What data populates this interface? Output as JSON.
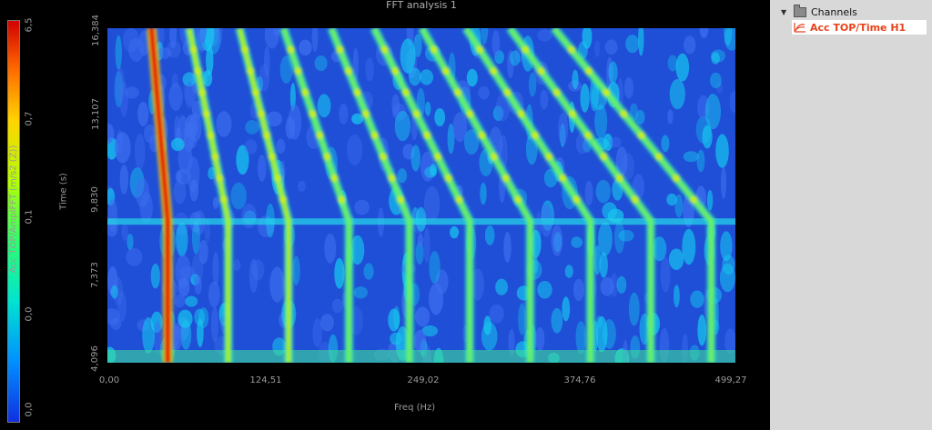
{
  "chart": {
    "title": "FFT analysis 1",
    "x_title": "Freq (Hz)",
    "y_title": "Time (s)",
    "colorbar_title": "Acc TOP/AmplFFT (m/s2 (Z))",
    "x_ticks": [
      "0,00",
      "124,51",
      "249,02",
      "374,76",
      "499,27"
    ],
    "y_ticks": [
      "16,384",
      "13,107",
      "9,830",
      "7,373",
      "4,096"
    ],
    "colorbar_ticks": [
      "6,5",
      "0,7",
      "0,1",
      "0,0",
      "0,0"
    ]
  },
  "chart_data": {
    "type": "heatmap",
    "title": "FFT analysis 1",
    "xlabel": "Freq (Hz)",
    "ylabel": "Time (s)",
    "xlim": [
      0,
      499.27
    ],
    "ylim": [
      4.096,
      16.384
    ],
    "colorbar_label": "Acc TOP/AmplFFT (m/s2 (Z))",
    "colorbar_ticks": [
      "6,5",
      "0,7",
      "0,1",
      "0,0",
      "0,0"
    ],
    "colormap": [
      "#1030e0",
      "#0090ff",
      "#00e3d0",
      "#2dff6e",
      "#b4ff00",
      "#ffd400",
      "#ff6a00",
      "#d20000"
    ],
    "order_lines_hz_at_start": [
      48,
      96,
      144,
      192,
      240,
      288,
      336,
      384,
      432,
      480
    ],
    "order_lines_hz_at_end": [
      35,
      65,
      105,
      140,
      178,
      212,
      250,
      285,
      320,
      355
    ],
    "steady_after_s": 9.3
  },
  "sidebar": {
    "group_label": "Channels",
    "channel_label": "Acc TOP/Time H1",
    "channel_color": "#e8431c"
  }
}
